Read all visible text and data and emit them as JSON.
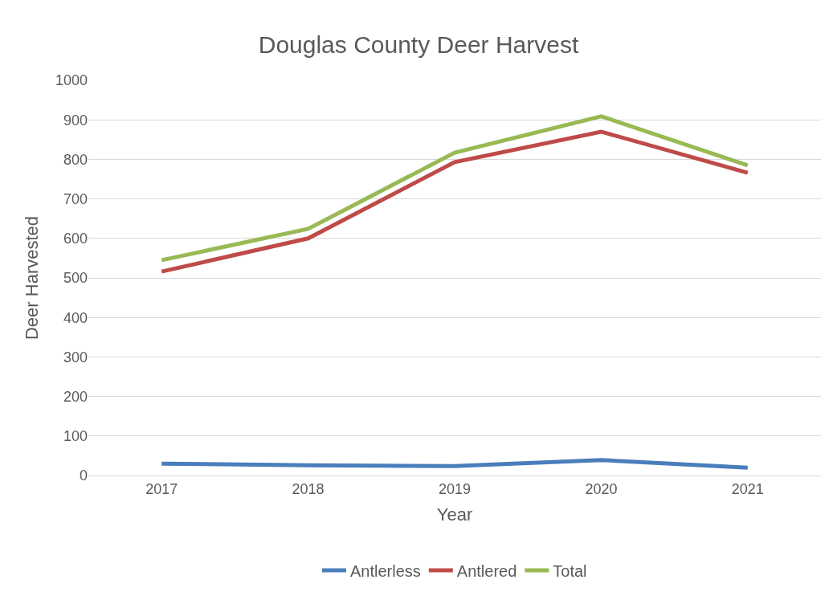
{
  "chart_data": {
    "type": "line",
    "title": "Douglas County Deer Harvest",
    "xlabel": "Year",
    "ylabel": "Deer Harvested",
    "categories": [
      "2017",
      "2018",
      "2019",
      "2020",
      "2021"
    ],
    "series": [
      {
        "name": "Antlerless",
        "color": "#4a7ebb",
        "values": [
          30,
          26,
          24,
          39,
          20
        ]
      },
      {
        "name": "Antlered",
        "color": "#be4b48",
        "values": [
          516,
          600,
          793,
          870,
          766
        ]
      },
      {
        "name": "Total",
        "color": "#98b954",
        "values": [
          545,
          624,
          817,
          909,
          785
        ]
      }
    ],
    "ylim": [
      0,
      1000
    ],
    "yticks": [
      0,
      100,
      200,
      300,
      400,
      500,
      600,
      700,
      800,
      900,
      1000
    ],
    "grid": "y",
    "legend": "bottom",
    "marker": "none",
    "line_style": "solid"
  }
}
